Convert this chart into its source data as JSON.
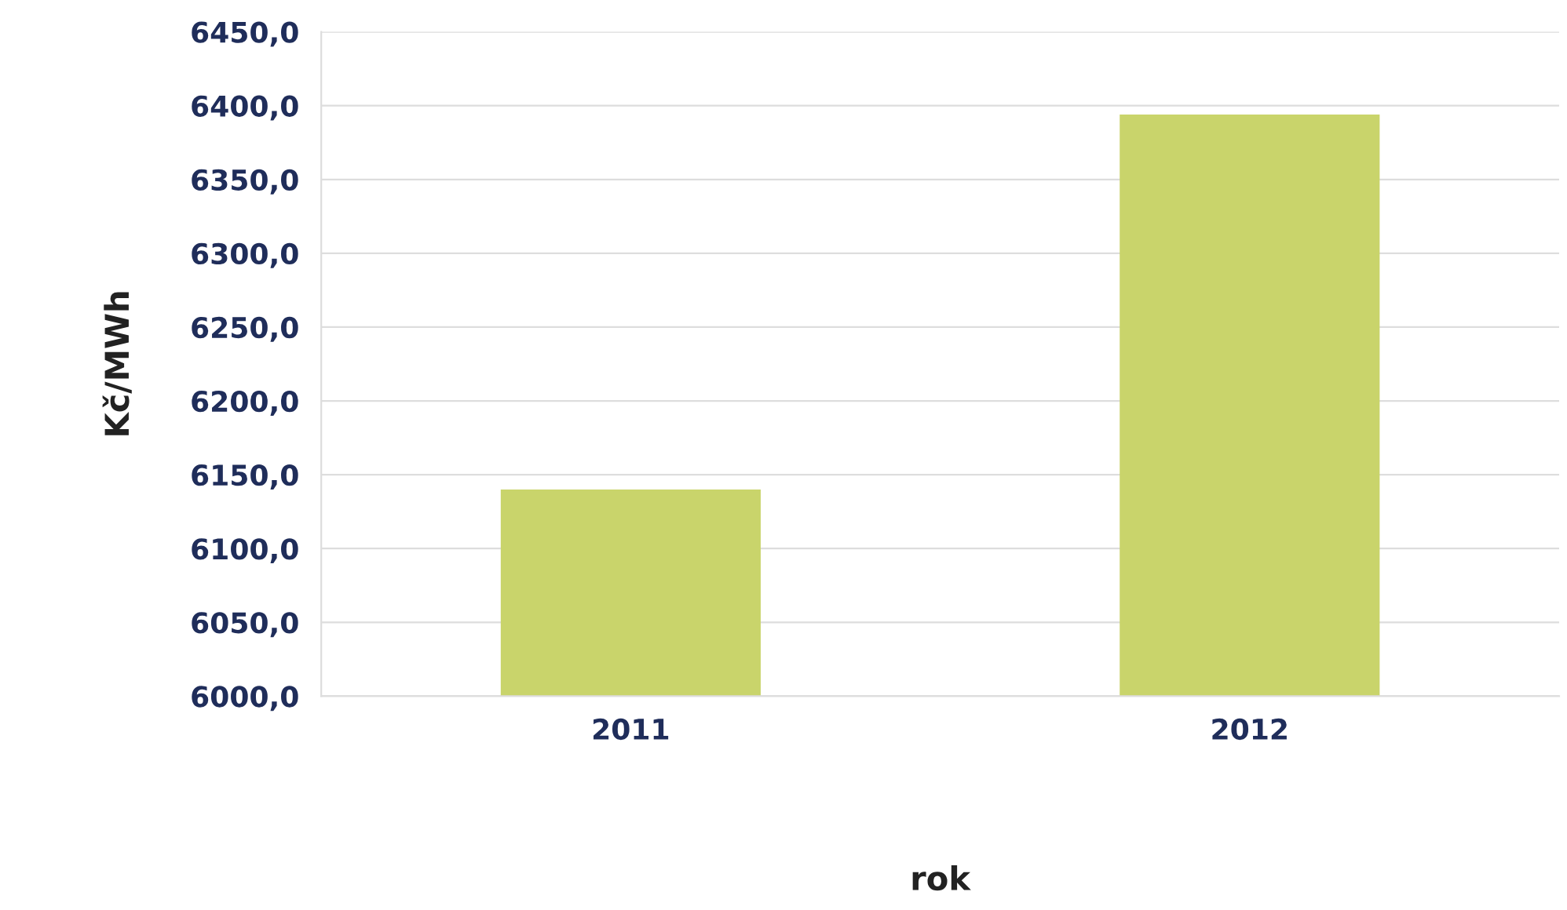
{
  "chart_data": {
    "type": "bar",
    "xlabel": "rok",
    "ylabel": "Kč/MWh",
    "categories": [
      "2011",
      "2012"
    ],
    "values": [
      6140,
      6394
    ],
    "color": "#c9d46b",
    "ylim": [
      6000,
      6450
    ],
    "yticks": [
      {
        "value": 6000,
        "label": "6000,0"
      },
      {
        "value": 6050,
        "label": "6050,0"
      },
      {
        "value": 6100,
        "label": "6100,0"
      },
      {
        "value": 6150,
        "label": "6150,0"
      },
      {
        "value": 6200,
        "label": "6200,0"
      },
      {
        "value": 6250,
        "label": "6250,0"
      },
      {
        "value": 6300,
        "label": "6300,0"
      },
      {
        "value": 6350,
        "label": "6350,0"
      },
      {
        "value": 6400,
        "label": "6400,0"
      },
      {
        "value": 6450,
        "label": "6450,0"
      }
    ],
    "grid": "y"
  }
}
